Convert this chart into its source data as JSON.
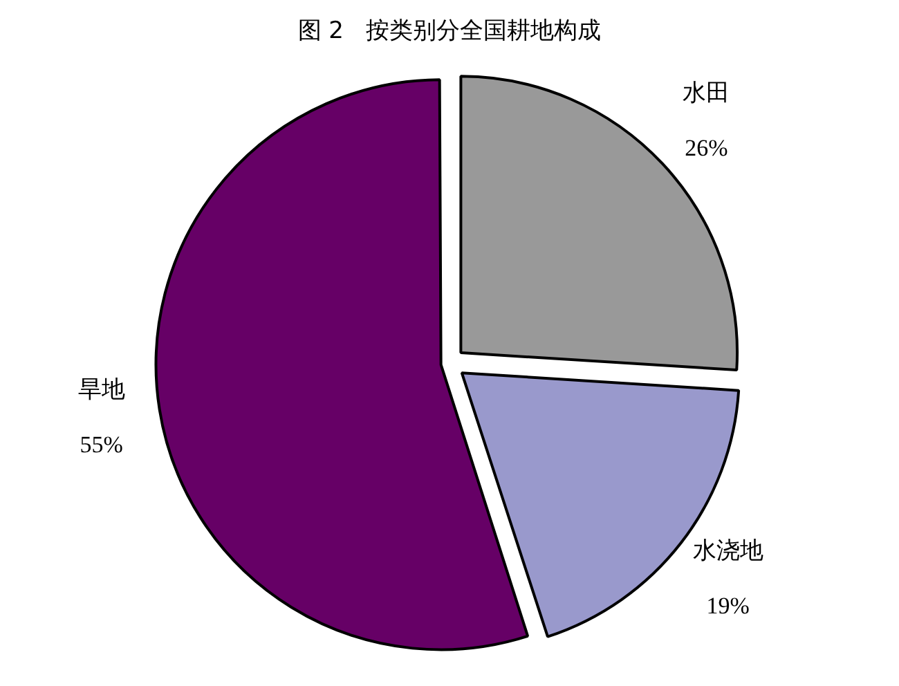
{
  "chart_data": {
    "type": "pie",
    "title": "图 2   按类别分全国耕地构成",
    "categories": [
      "水田",
      "水浇地",
      "旱地"
    ],
    "values": [
      26,
      19,
      55
    ],
    "value_labels": [
      "26%",
      "19%",
      "55%"
    ],
    "colors": [
      "#999999",
      "#9999cc",
      "#660066"
    ],
    "legend": false
  }
}
